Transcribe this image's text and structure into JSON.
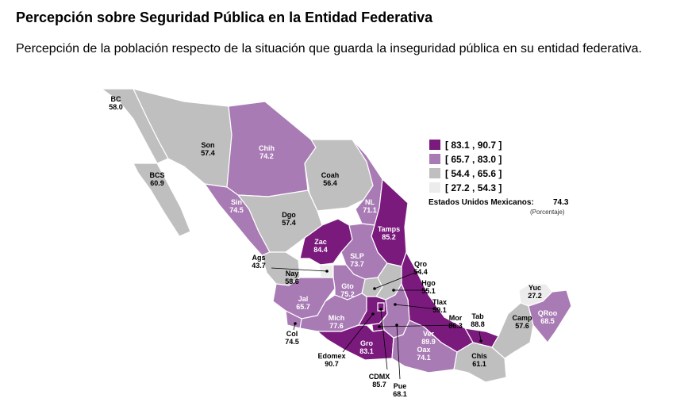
{
  "title": "Percepción sobre Seguridad Pública en la Entidad Federativa",
  "subtitle": "Percepción de la población respecto de la situación que guarda la inseguridad pública en su entidad federativa.",
  "colors": {
    "class1": "#7b1a7d",
    "class2": "#a97bb5",
    "class3": "#bfbfbf",
    "class4": "#ececec",
    "border": "#ffffff"
  },
  "legend": [
    {
      "label": "[ 83.1 , 90.7 ]",
      "color": "#7b1a7d"
    },
    {
      "label": "[ 65.7 , 83.0 ]",
      "color": "#a97bb5"
    },
    {
      "label": "[ 54.4 , 65.6 ]",
      "color": "#bfbfbf"
    },
    {
      "label": "[ 27.2 , 54.3 ]",
      "color": "#ececec"
    }
  ],
  "national": {
    "label": "Estados Unidos Mexicanos:",
    "value": "74.3",
    "unit": "(Porcentaje)"
  },
  "states": [
    {
      "abbr": "BC",
      "value": "58.0"
    },
    {
      "abbr": "Son",
      "value": "57.4"
    },
    {
      "abbr": "Chih",
      "value": "74.2"
    },
    {
      "abbr": "Coah",
      "value": "56.4"
    },
    {
      "abbr": "BCS",
      "value": "60.9"
    },
    {
      "abbr": "Sin",
      "value": "74.5"
    },
    {
      "abbr": "Dgo",
      "value": "57.4"
    },
    {
      "abbr": "NL",
      "value": "71.1"
    },
    {
      "abbr": "Tamps",
      "value": "85.2"
    },
    {
      "abbr": "Zac",
      "value": "84.4"
    },
    {
      "abbr": "SLP",
      "value": "73.7"
    },
    {
      "abbr": "Ags",
      "value": "43.7"
    },
    {
      "abbr": "Nay",
      "value": "58.6"
    },
    {
      "abbr": "Qro",
      "value": "54.4"
    },
    {
      "abbr": "Gto",
      "value": "75.2"
    },
    {
      "abbr": "Hgo",
      "value": "55.1"
    },
    {
      "abbr": "Jal",
      "value": "65.7"
    },
    {
      "abbr": "Tlax",
      "value": "59.1"
    },
    {
      "abbr": "Mich",
      "value": "77.6"
    },
    {
      "abbr": "Mor",
      "value": "86.3"
    },
    {
      "abbr": "Tab",
      "value": "88.8"
    },
    {
      "abbr": "Yuc",
      "value": "27.2"
    },
    {
      "abbr": "Camp",
      "value": "57.6"
    },
    {
      "abbr": "QRoo",
      "value": "68.5"
    },
    {
      "abbr": "Col",
      "value": "74.5"
    },
    {
      "abbr": "Gro",
      "value": "83.1"
    },
    {
      "abbr": "Ver",
      "value": "89.9"
    },
    {
      "abbr": "Oax",
      "value": "74.1"
    },
    {
      "abbr": "Chis",
      "value": "61.1"
    },
    {
      "abbr": "Edomex",
      "value": "90.7"
    },
    {
      "abbr": "CDMX",
      "value": "85.7"
    },
    {
      "abbr": "Pue",
      "value": "68.1"
    }
  ]
}
